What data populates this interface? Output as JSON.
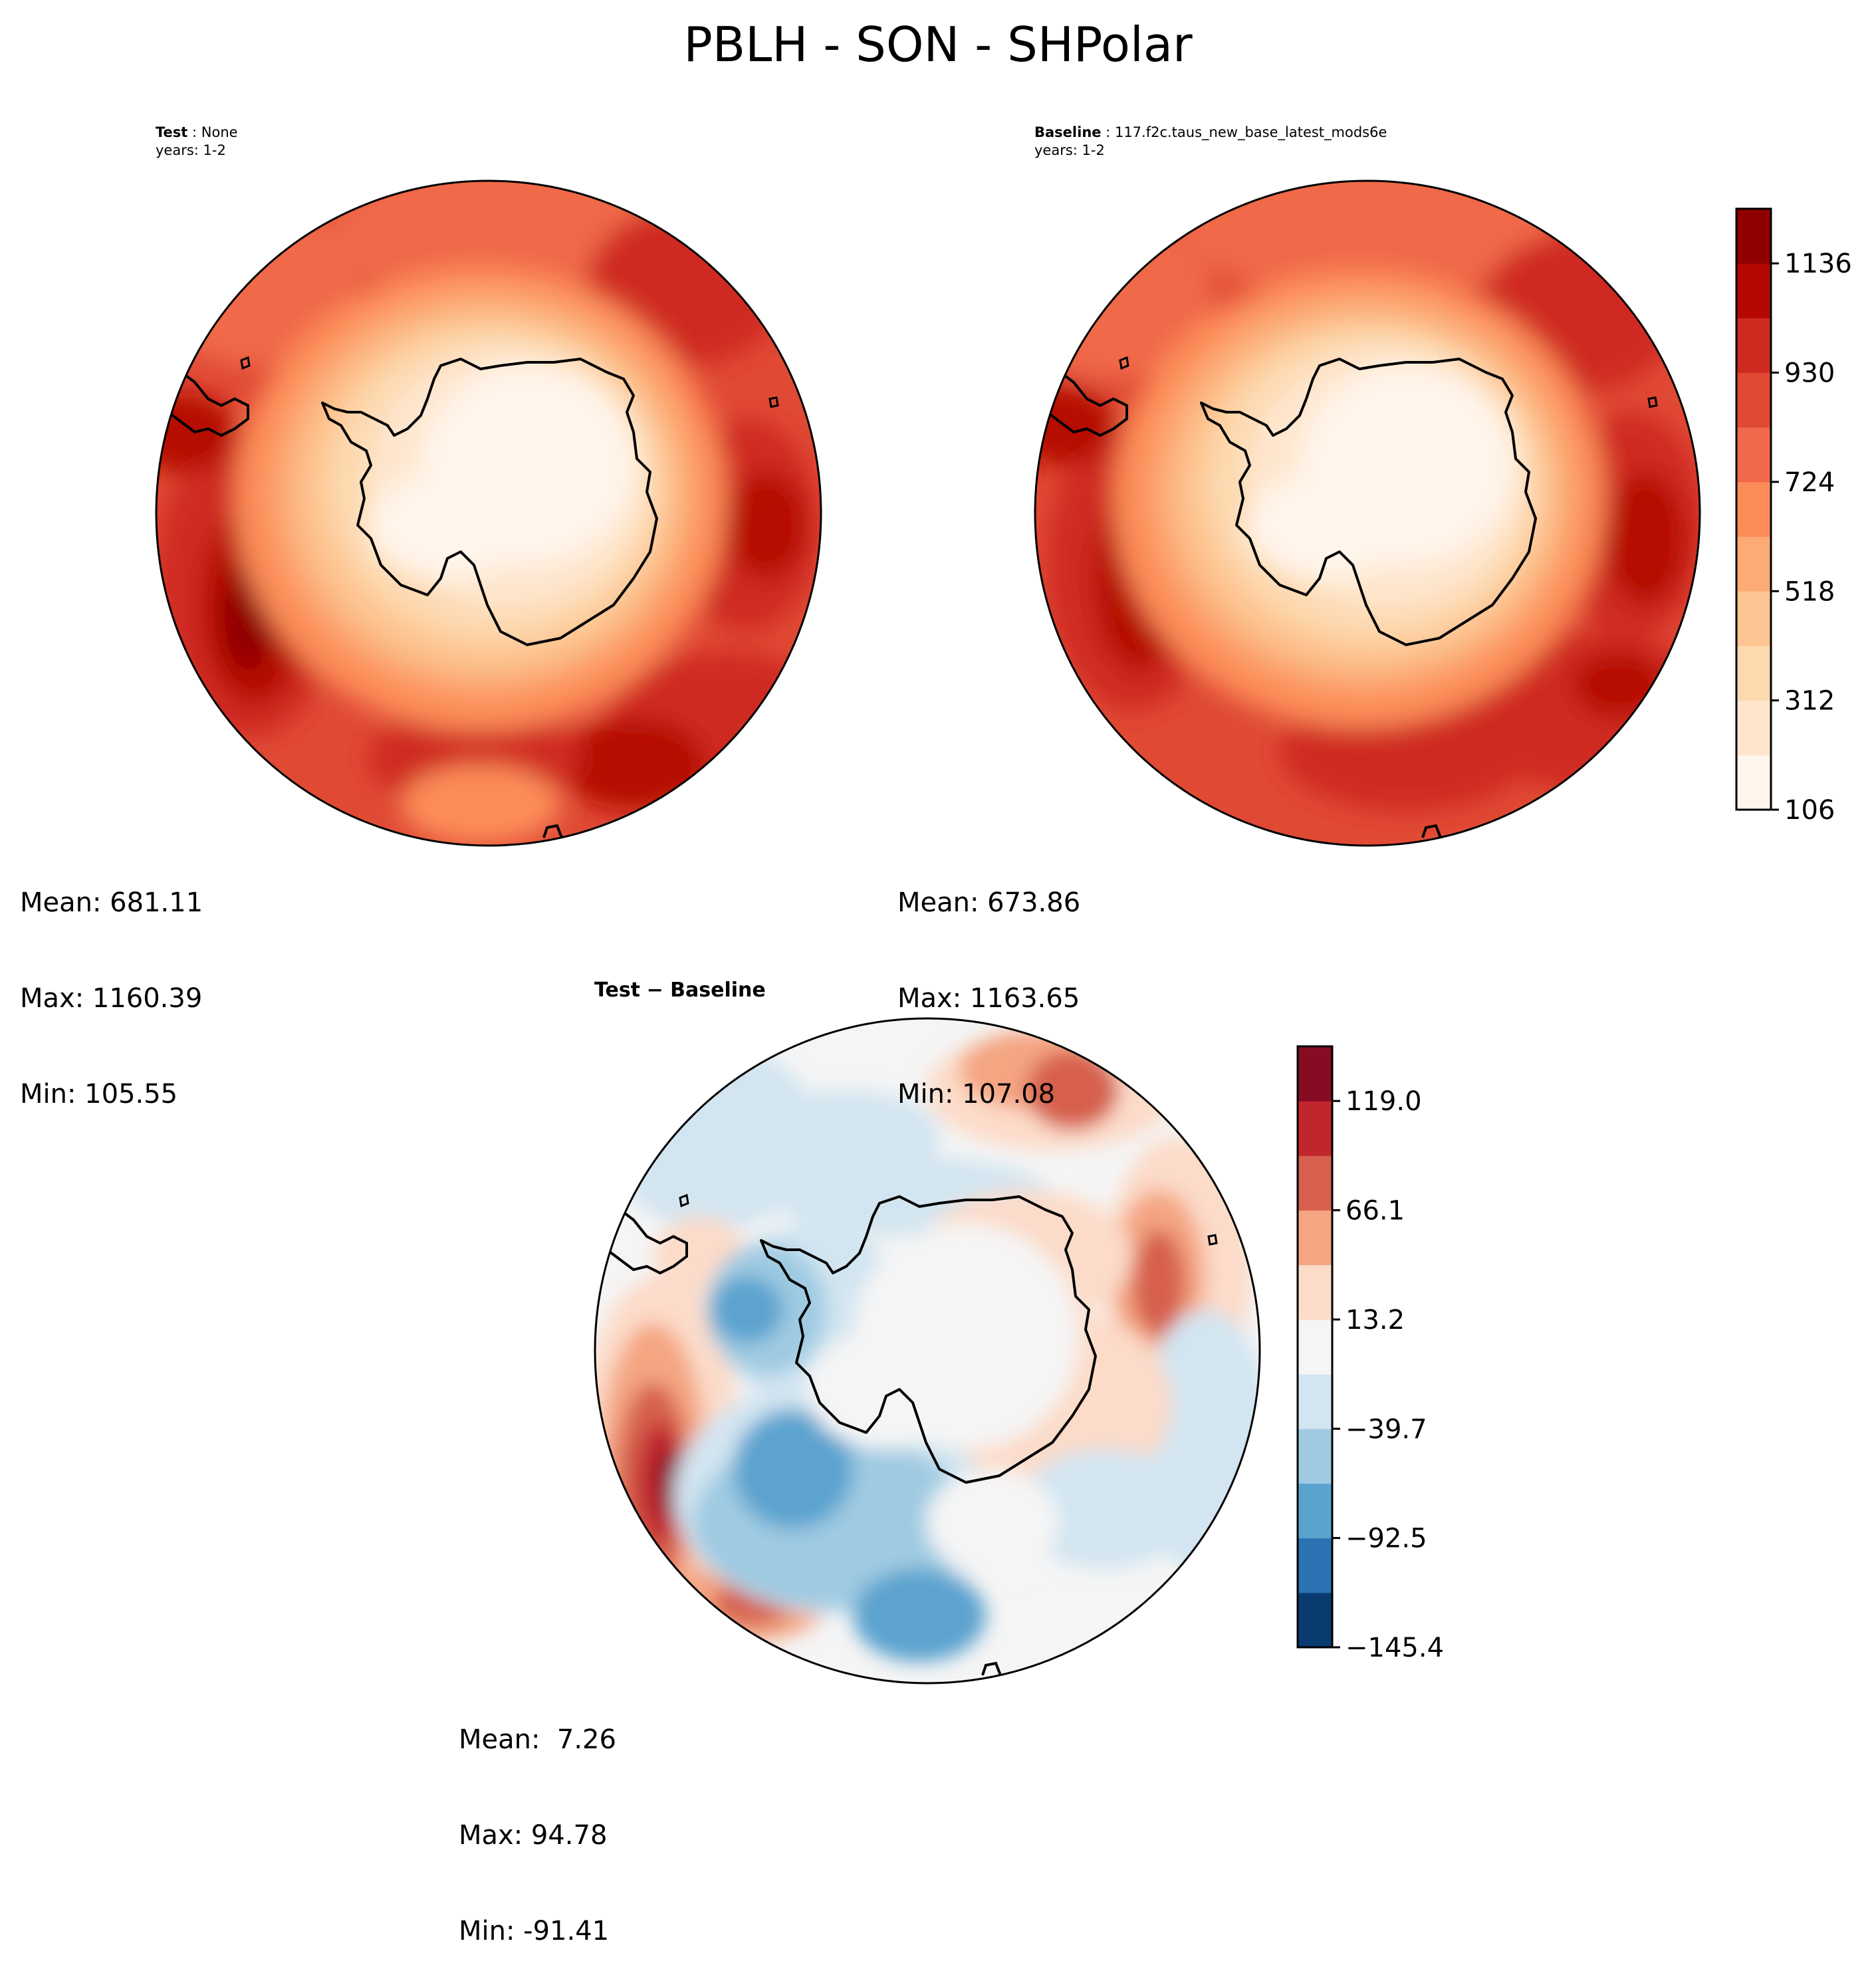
{
  "title": "PBLH - SON - SHPolar",
  "test_panel": {
    "label": "Test",
    "name": "None",
    "years": "years: 1-2",
    "stats": {
      "mean": "Mean: 681.11",
      "max": "Max: 1160.39",
      "min": "Min: 105.55"
    }
  },
  "baseline_panel": {
    "label": "Baseline",
    "name": "117.f2c.taus_new_base_latest_mods6e",
    "years": "years: 1-2",
    "stats": {
      "mean": "Mean: 673.86",
      "max": "Max: 1163.65",
      "min": "Min: 107.08"
    }
  },
  "diff_panel": {
    "label_left": "Test",
    "label_op": "−",
    "label_right": "Baseline",
    "stats": {
      "mean": "Mean:  7.26",
      "max": "Max: 94.78",
      "min": "Min: -91.41"
    }
  },
  "colorbar_main": {
    "ticks": [
      "106",
      "312",
      "518",
      "724",
      "930",
      "1136"
    ],
    "colors": [
      "#fff5eb",
      "#fee6ce",
      "#fdd9b0",
      "#fdc591",
      "#fcab76",
      "#fc8d59",
      "#f0694a",
      "#e04a35",
      "#cf2a20",
      "#b50805",
      "#900000"
    ]
  },
  "colorbar_diff": {
    "ticks": [
      "−145.4",
      "−92.5",
      "−39.7",
      "13.2",
      "66.1",
      "119.0"
    ],
    "colors": [
      "#0a3b70",
      "#2a72b2",
      "#5ba3cf",
      "#9fcae2",
      "#d2e5f1",
      "#f5f5f5",
      "#fcdbc9",
      "#f4a582",
      "#d6604d",
      "#c0272d",
      "#850c23"
    ]
  }
}
